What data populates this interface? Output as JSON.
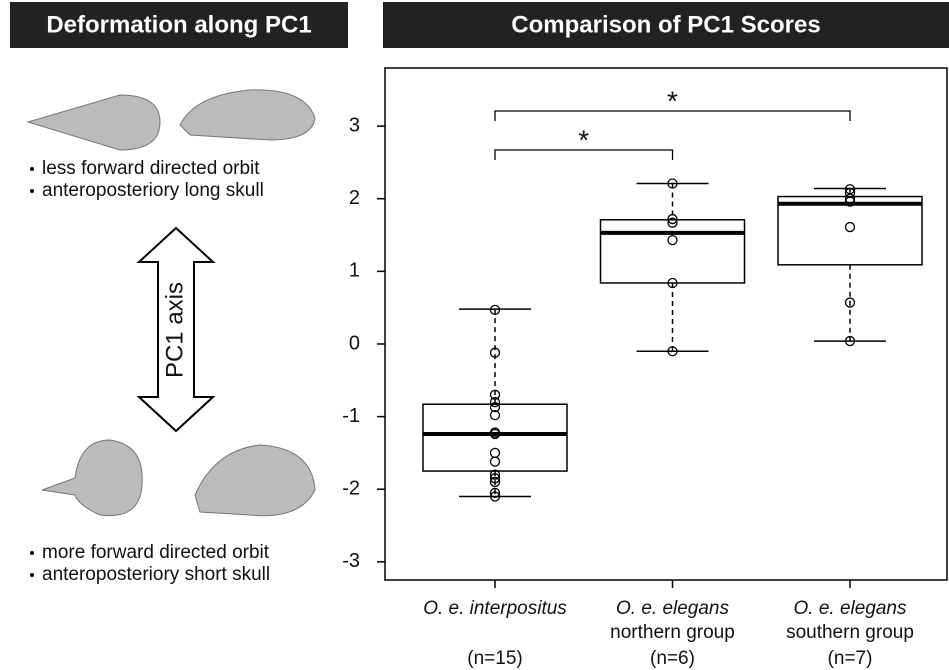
{
  "left_panel": {
    "title": "Deformation along PC1",
    "top_notes": [
      "less forward directed orbit",
      "anteroposteriory long skull"
    ],
    "axis_label": "PC1 axis",
    "bottom_notes": [
      "more forward directed orbit",
      "anteroposteriory short skull"
    ]
  },
  "chart_data": {
    "type": "box",
    "title": "Comparison of PC1 Scores",
    "categories": [
      "O. e. interpositus",
      "O. e. elegans",
      "O. e. elegans"
    ],
    "category_sublabels": [
      null,
      "northern group",
      "southern group"
    ],
    "sample_sizes": [
      "(n=15)",
      "(n=6)",
      "(n=7)"
    ],
    "boxes": [
      {
        "whisker_low": -2.1,
        "q1": -1.75,
        "median": -1.24,
        "q3": -0.83,
        "whisker_high": 0.48,
        "points": [
          0.47,
          -0.12,
          -0.7,
          -0.8,
          -0.87,
          -0.98,
          -1.22,
          -1.24,
          -1.5,
          -1.62,
          -1.8,
          -1.85,
          -1.9,
          -2.05,
          -2.1
        ]
      },
      {
        "whisker_low": -0.1,
        "q1": 0.84,
        "median": 1.53,
        "q3": 1.71,
        "whisker_high": 2.21,
        "points": [
          2.21,
          1.72,
          1.67,
          1.43,
          0.84,
          -0.1
        ]
      },
      {
        "whisker_low": 0.04,
        "q1": 1.09,
        "median": 1.93,
        "q3": 2.03,
        "whisker_high": 2.14,
        "points": [
          2.13,
          2.08,
          2.0,
          1.96,
          1.61,
          0.57,
          0.04
        ]
      }
    ],
    "annotations": [
      "*",
      "*"
    ],
    "ylim": [
      -3.25,
      3.8
    ],
    "yticks": [
      -3,
      -2,
      -1,
      0,
      1,
      2,
      3
    ],
    "color": "#000000"
  }
}
